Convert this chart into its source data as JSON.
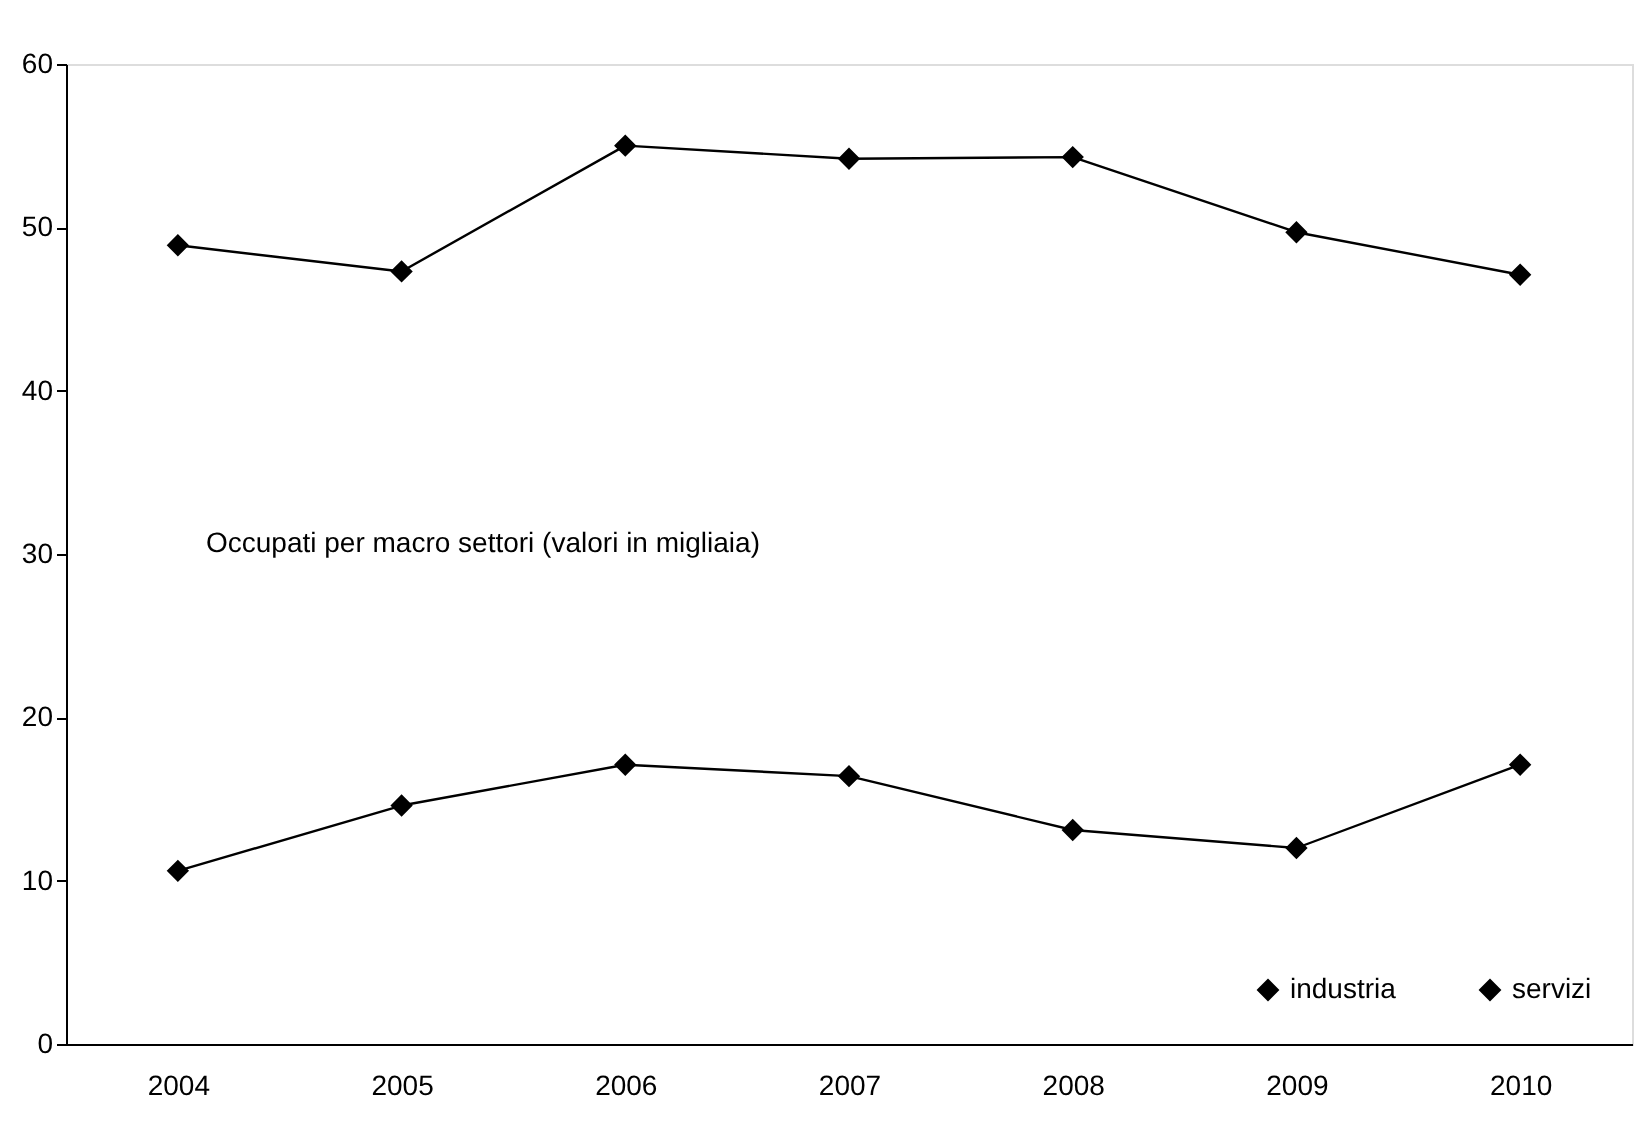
{
  "chart_data": {
    "type": "line",
    "title": "Occupati per macro settori (valori in migliaia)",
    "categories": [
      "2004",
      "2005",
      "2006",
      "2007",
      "2008",
      "2009",
      "2010"
    ],
    "series": [
      {
        "name": "industria",
        "color": "#000000",
        "values": [
          10.6,
          14.6,
          17.1,
          16.4,
          13.1,
          12.0,
          17.1
        ]
      },
      {
        "name": "servizi",
        "color": "#000000",
        "values": [
          48.9,
          47.3,
          55.0,
          54.2,
          54.3,
          49.7,
          47.1
        ]
      }
    ],
    "ylim": [
      0,
      60
    ],
    "yticks": [
      0,
      10,
      20,
      30,
      40,
      50,
      60
    ],
    "grid": false,
    "legend": "bottom right",
    "marker": "diamond",
    "line_style": "solid"
  }
}
